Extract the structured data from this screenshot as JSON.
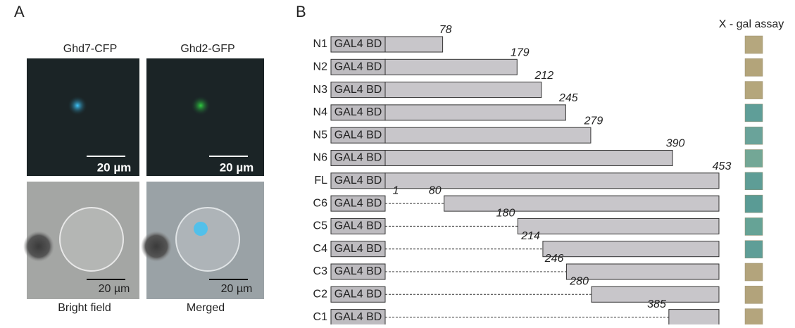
{
  "panel_a": {
    "label": "A",
    "titles": [
      "Ghd7-CFP",
      "Ghd2-GFP"
    ],
    "captions": [
      "Bright field",
      "Merged"
    ],
    "scale_bar": "20 µm"
  },
  "panel_b": {
    "label": "B",
    "assay_title": "X - gal assay",
    "bd_label": "GAL4 BD",
    "constructs": [
      {
        "name": "N1",
        "end": 78,
        "assay_color": "#b5a77e"
      },
      {
        "name": "N2",
        "end": 179,
        "assay_color": "#b3a47a"
      },
      {
        "name": "N3",
        "end": 212,
        "assay_color": "#b4a67c"
      },
      {
        "name": "N4",
        "end": 245,
        "assay_color": "#5f9e98"
      },
      {
        "name": "N5",
        "end": 279,
        "assay_color": "#6aa39a"
      },
      {
        "name": "N6",
        "end": 390,
        "assay_color": "#73a796"
      },
      {
        "name": "FL",
        "end": 453,
        "assay_color": "#5e9d96"
      },
      {
        "name": "C6",
        "gap_start": 1,
        "start": 80,
        "assay_color": "#5a9b95"
      },
      {
        "name": "C5",
        "start": 180,
        "assay_color": "#66a396"
      },
      {
        "name": "C4",
        "start": 214,
        "assay_color": "#5f9e97"
      },
      {
        "name": "C3",
        "start": 246,
        "assay_color": "#b3a47c"
      },
      {
        "name": "C2",
        "start": 280,
        "assay_color": "#b2a37b"
      },
      {
        "name": "C1",
        "start": 385,
        "assay_color": "#b4a57d"
      }
    ]
  }
}
